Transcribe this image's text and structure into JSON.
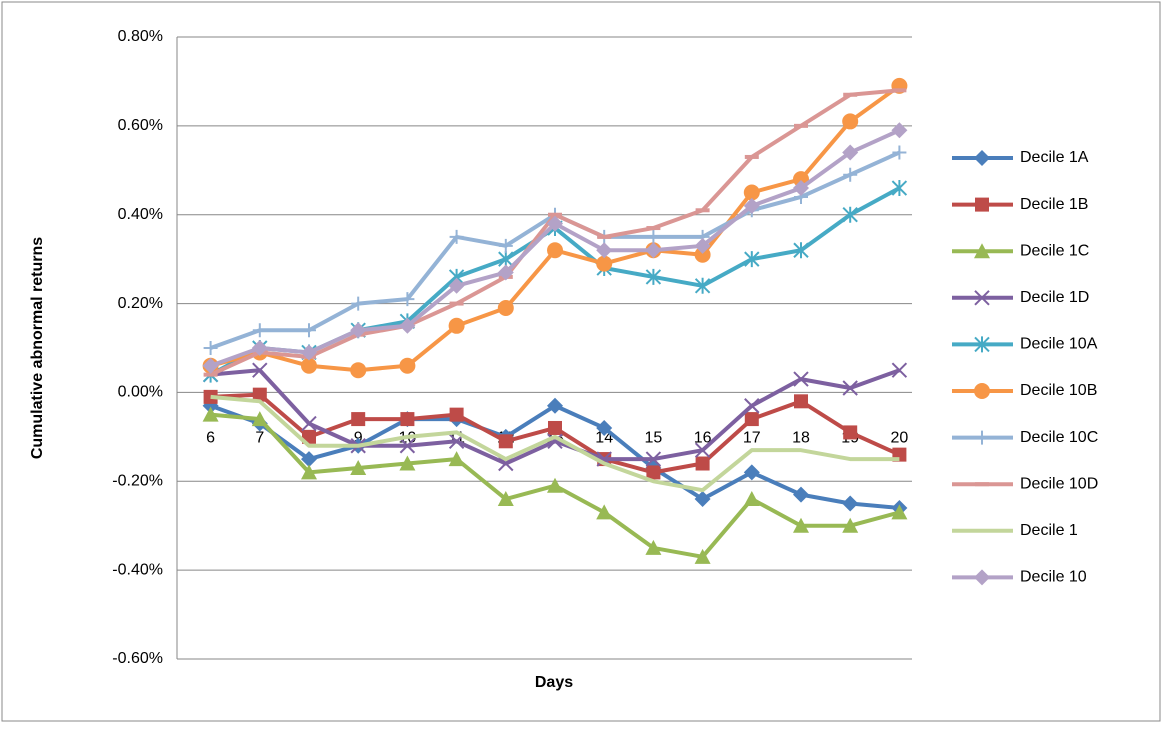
{
  "chart_data": {
    "type": "line",
    "y_label": "Cumulative abnormal returns",
    "x_label": "Days",
    "categories": [
      "6",
      "7",
      "8",
      "9",
      "10",
      "11",
      "12",
      "13",
      "14",
      "15",
      "16",
      "17",
      "18",
      "19",
      "20"
    ],
    "ylim": [
      -0.6,
      0.8
    ],
    "yticks": [
      {
        "value": -0.6,
        "label": "-0.60%"
      },
      {
        "value": -0.4,
        "label": "-0.40%"
      },
      {
        "value": -0.2,
        "label": "-0.20%"
      },
      {
        "value": 0,
        "label": "0.00%"
      },
      {
        "value": 0.2,
        "label": "0.20%"
      },
      {
        "value": 0.4,
        "label": "0.40%"
      },
      {
        "value": 0.6,
        "label": "0.60%"
      },
      {
        "value": 0.8,
        "label": "0.80%"
      }
    ],
    "grid": true,
    "legend": "right",
    "series": [
      {
        "name": "Decile 1A",
        "color": "#4a7ebb",
        "marker": "diamond",
        "values": [
          -0.03,
          -0.07,
          -0.15,
          -0.12,
          -0.06,
          -0.06,
          -0.1,
          -0.03,
          -0.08,
          -0.17,
          -0.24,
          -0.18,
          -0.23,
          -0.25,
          -0.26
        ]
      },
      {
        "name": "Decile 1B",
        "color": "#be4b48",
        "marker": "square",
        "values": [
          -0.01,
          -0.005,
          -0.1,
          -0.06,
          -0.06,
          -0.05,
          -0.11,
          -0.08,
          -0.15,
          -0.18,
          -0.16,
          -0.06,
          -0.02,
          -0.09,
          -0.14
        ]
      },
      {
        "name": "Decile 1C",
        "color": "#98b954",
        "marker": "triangle",
        "values": [
          -0.05,
          -0.06,
          -0.18,
          -0.17,
          -0.16,
          -0.15,
          -0.24,
          -0.21,
          -0.27,
          -0.35,
          -0.37,
          -0.24,
          -0.3,
          -0.3,
          -0.27
        ]
      },
      {
        "name": "Decile 1D",
        "color": "#7d60a0",
        "marker": "x",
        "values": [
          0.04,
          0.05,
          -0.07,
          -0.12,
          -0.12,
          -0.11,
          -0.16,
          -0.11,
          -0.15,
          -0.15,
          -0.13,
          -0.03,
          0.03,
          0.01,
          0.05
        ]
      },
      {
        "name": "Decile 10A",
        "color": "#46aac5",
        "marker": "star",
        "values": [
          0.04,
          0.1,
          0.09,
          0.14,
          0.16,
          0.26,
          0.3,
          0.37,
          0.28,
          0.26,
          0.24,
          0.3,
          0.32,
          0.4,
          0.46
        ]
      },
      {
        "name": "Decile 10B",
        "color": "#f79646",
        "marker": "circle",
        "values": [
          0.06,
          0.09,
          0.06,
          0.05,
          0.06,
          0.15,
          0.19,
          0.32,
          0.29,
          0.32,
          0.31,
          0.45,
          0.48,
          0.61,
          0.69
        ]
      },
      {
        "name": "Decile 10C",
        "color": "#94b3d6",
        "marker": "plus",
        "values": [
          0.1,
          0.14,
          0.14,
          0.2,
          0.21,
          0.35,
          0.33,
          0.4,
          0.35,
          0.35,
          0.35,
          0.41,
          0.44,
          0.49,
          0.54
        ]
      },
      {
        "name": "Decile 10D",
        "color": "#da9694",
        "marker": "dash",
        "values": [
          0.04,
          0.09,
          0.08,
          0.13,
          0.15,
          0.2,
          0.26,
          0.4,
          0.35,
          0.37,
          0.41,
          0.53,
          0.6,
          0.67,
          0.68
        ]
      },
      {
        "name": "Decile 1",
        "color": "#c3d69b",
        "marker": "none",
        "values": [
          -0.01,
          -0.02,
          -0.12,
          -0.12,
          -0.1,
          -0.09,
          -0.15,
          -0.1,
          -0.16,
          -0.2,
          -0.22,
          -0.13,
          -0.13,
          -0.15,
          -0.15
        ]
      },
      {
        "name": "Decile 10",
        "color": "#b3a2c7",
        "marker": "diamond",
        "values": [
          0.06,
          0.1,
          0.09,
          0.14,
          0.15,
          0.24,
          0.27,
          0.38,
          0.32,
          0.32,
          0.33,
          0.42,
          0.46,
          0.54,
          0.59
        ]
      }
    ]
  }
}
